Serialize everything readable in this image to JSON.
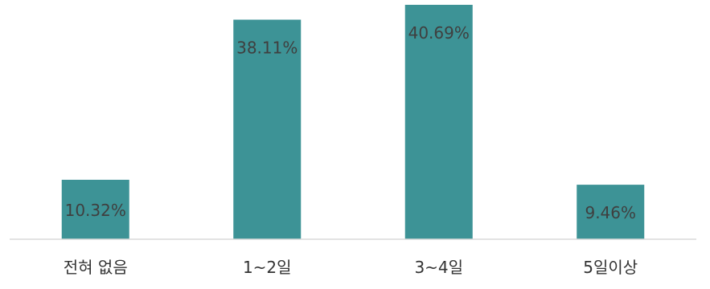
{
  "chart_data": {
    "type": "bar",
    "categories": [
      "전혀 없음",
      "1~2일",
      "3~4일",
      "5일이상"
    ],
    "values": [
      10.32,
      38.11,
      40.69,
      9.46
    ],
    "data_labels": [
      "10.32%",
      "38.11%",
      "40.69%",
      "9.46%"
    ],
    "title": "",
    "xlabel": "",
    "ylabel": "",
    "ylim": [
      0,
      40.69
    ],
    "grid": false,
    "legend": "none",
    "bar_color": "#3d9396",
    "axis_color": "#d9d9d9"
  }
}
